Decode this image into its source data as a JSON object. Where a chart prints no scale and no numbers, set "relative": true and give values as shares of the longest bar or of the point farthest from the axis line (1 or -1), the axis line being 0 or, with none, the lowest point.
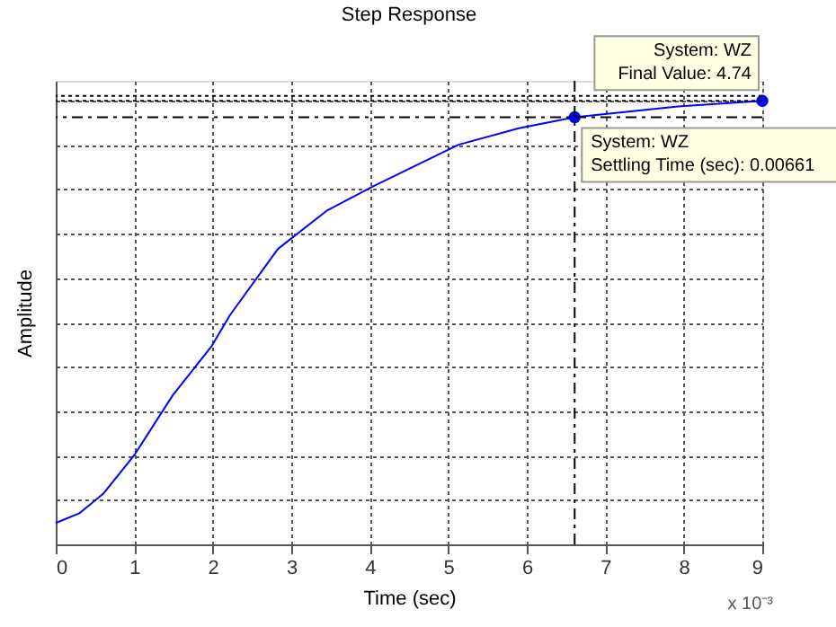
{
  "chart_data": {
    "type": "line",
    "title": "Step Response",
    "xlabel": "Time (sec)",
    "ylabel": "Amplitude",
    "relative": true,
    "x": [
      0,
      0.3,
      0.61,
      1.0,
      1.49,
      1.99,
      2.22,
      2.83,
      3.45,
      4.05,
      5.13,
      5.9,
      6.61,
      7.9,
      9
    ],
    "series": [
      {
        "color": "#0000ff",
        "values": [
          0.048,
          0.07,
          0.115,
          0.201,
          0.336,
          0.448,
          0.517,
          0.666,
          0.752,
          0.808,
          0.901,
          0.938,
          0.963,
          0.987,
          1.0
        ]
      },
      {
        "type": "scatter",
        "color": "#0000ff",
        "x": [
          6.61,
          9
        ],
        "values": [
          0.963,
          1.0
        ],
        "marker": "circle"
      }
    ],
    "xlim": [
      0,
      9
    ],
    "xticks": [
      0,
      1,
      2,
      3,
      4,
      5,
      6,
      7,
      8,
      9
    ],
    "grid": true,
    "marker": "none",
    "line_style": "solid",
    "ref_lines": [
      {
        "axis": "y",
        "value": 1.0,
        "line_style": "dotted",
        "color": "#000000"
      },
      {
        "axis": "y",
        "value": 1.011,
        "line_style": "dotted",
        "color": "#000000"
      },
      {
        "axis": "y",
        "value": 0.963,
        "line_style": "dashed",
        "color": "#000000"
      },
      {
        "axis": "x",
        "value": 6.61,
        "line_style": "dashed",
        "color": "#000000"
      }
    ],
    "annotations": [
      {
        "text": "System: WZ\nFinal Value: 4.74",
        "x": 9,
        "y": 1.0
      },
      {
        "text": "System: WZ\nSettling Time (sec): 0.00661",
        "x": 6.61,
        "y": 0.963
      },
      "x 10⁻³"
    ]
  }
}
